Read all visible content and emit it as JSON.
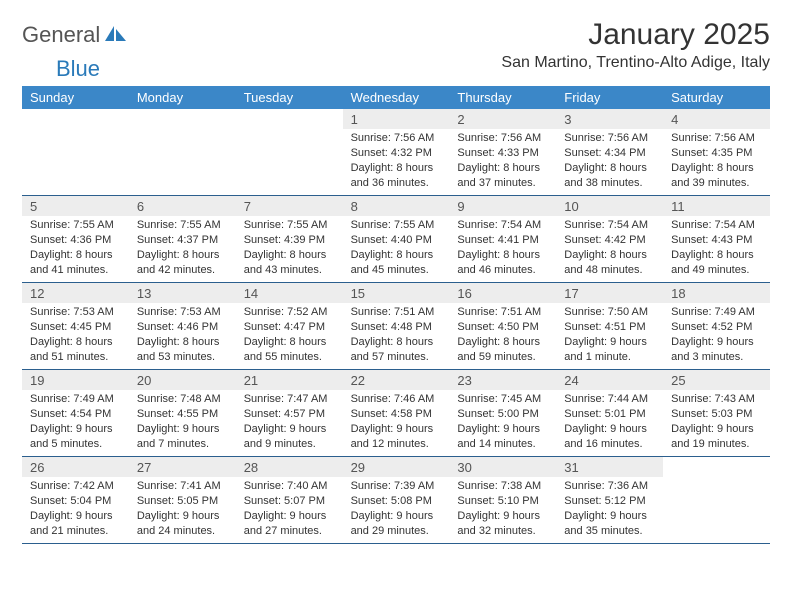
{
  "brand": {
    "part1": "General",
    "part2": "Blue"
  },
  "title": "January 2025",
  "location": "San Martino, Trentino-Alto Adige, Italy",
  "colors": {
    "header_bg": "#3b87c8",
    "header_text": "#ffffff",
    "daynum_bg": "#ededed",
    "rule": "#2b5f8e",
    "brand_blue": "#2a7ab9",
    "text": "#333333"
  },
  "day_names": [
    "Sunday",
    "Monday",
    "Tuesday",
    "Wednesday",
    "Thursday",
    "Friday",
    "Saturday"
  ],
  "weeks": [
    [
      {
        "n": "",
        "lines": []
      },
      {
        "n": "",
        "lines": []
      },
      {
        "n": "",
        "lines": []
      },
      {
        "n": "1",
        "lines": [
          "Sunrise: 7:56 AM",
          "Sunset: 4:32 PM",
          "Daylight: 8 hours",
          "and 36 minutes."
        ]
      },
      {
        "n": "2",
        "lines": [
          "Sunrise: 7:56 AM",
          "Sunset: 4:33 PM",
          "Daylight: 8 hours",
          "and 37 minutes."
        ]
      },
      {
        "n": "3",
        "lines": [
          "Sunrise: 7:56 AM",
          "Sunset: 4:34 PM",
          "Daylight: 8 hours",
          "and 38 minutes."
        ]
      },
      {
        "n": "4",
        "lines": [
          "Sunrise: 7:56 AM",
          "Sunset: 4:35 PM",
          "Daylight: 8 hours",
          "and 39 minutes."
        ]
      }
    ],
    [
      {
        "n": "5",
        "lines": [
          "Sunrise: 7:55 AM",
          "Sunset: 4:36 PM",
          "Daylight: 8 hours",
          "and 41 minutes."
        ]
      },
      {
        "n": "6",
        "lines": [
          "Sunrise: 7:55 AM",
          "Sunset: 4:37 PM",
          "Daylight: 8 hours",
          "and 42 minutes."
        ]
      },
      {
        "n": "7",
        "lines": [
          "Sunrise: 7:55 AM",
          "Sunset: 4:39 PM",
          "Daylight: 8 hours",
          "and 43 minutes."
        ]
      },
      {
        "n": "8",
        "lines": [
          "Sunrise: 7:55 AM",
          "Sunset: 4:40 PM",
          "Daylight: 8 hours",
          "and 45 minutes."
        ]
      },
      {
        "n": "9",
        "lines": [
          "Sunrise: 7:54 AM",
          "Sunset: 4:41 PM",
          "Daylight: 8 hours",
          "and 46 minutes."
        ]
      },
      {
        "n": "10",
        "lines": [
          "Sunrise: 7:54 AM",
          "Sunset: 4:42 PM",
          "Daylight: 8 hours",
          "and 48 minutes."
        ]
      },
      {
        "n": "11",
        "lines": [
          "Sunrise: 7:54 AM",
          "Sunset: 4:43 PM",
          "Daylight: 8 hours",
          "and 49 minutes."
        ]
      }
    ],
    [
      {
        "n": "12",
        "lines": [
          "Sunrise: 7:53 AM",
          "Sunset: 4:45 PM",
          "Daylight: 8 hours",
          "and 51 minutes."
        ]
      },
      {
        "n": "13",
        "lines": [
          "Sunrise: 7:53 AM",
          "Sunset: 4:46 PM",
          "Daylight: 8 hours",
          "and 53 minutes."
        ]
      },
      {
        "n": "14",
        "lines": [
          "Sunrise: 7:52 AM",
          "Sunset: 4:47 PM",
          "Daylight: 8 hours",
          "and 55 minutes."
        ]
      },
      {
        "n": "15",
        "lines": [
          "Sunrise: 7:51 AM",
          "Sunset: 4:48 PM",
          "Daylight: 8 hours",
          "and 57 minutes."
        ]
      },
      {
        "n": "16",
        "lines": [
          "Sunrise: 7:51 AM",
          "Sunset: 4:50 PM",
          "Daylight: 8 hours",
          "and 59 minutes."
        ]
      },
      {
        "n": "17",
        "lines": [
          "Sunrise: 7:50 AM",
          "Sunset: 4:51 PM",
          "Daylight: 9 hours",
          "and 1 minute."
        ]
      },
      {
        "n": "18",
        "lines": [
          "Sunrise: 7:49 AM",
          "Sunset: 4:52 PM",
          "Daylight: 9 hours",
          "and 3 minutes."
        ]
      }
    ],
    [
      {
        "n": "19",
        "lines": [
          "Sunrise: 7:49 AM",
          "Sunset: 4:54 PM",
          "Daylight: 9 hours",
          "and 5 minutes."
        ]
      },
      {
        "n": "20",
        "lines": [
          "Sunrise: 7:48 AM",
          "Sunset: 4:55 PM",
          "Daylight: 9 hours",
          "and 7 minutes."
        ]
      },
      {
        "n": "21",
        "lines": [
          "Sunrise: 7:47 AM",
          "Sunset: 4:57 PM",
          "Daylight: 9 hours",
          "and 9 minutes."
        ]
      },
      {
        "n": "22",
        "lines": [
          "Sunrise: 7:46 AM",
          "Sunset: 4:58 PM",
          "Daylight: 9 hours",
          "and 12 minutes."
        ]
      },
      {
        "n": "23",
        "lines": [
          "Sunrise: 7:45 AM",
          "Sunset: 5:00 PM",
          "Daylight: 9 hours",
          "and 14 minutes."
        ]
      },
      {
        "n": "24",
        "lines": [
          "Sunrise: 7:44 AM",
          "Sunset: 5:01 PM",
          "Daylight: 9 hours",
          "and 16 minutes."
        ]
      },
      {
        "n": "25",
        "lines": [
          "Sunrise: 7:43 AM",
          "Sunset: 5:03 PM",
          "Daylight: 9 hours",
          "and 19 minutes."
        ]
      }
    ],
    [
      {
        "n": "26",
        "lines": [
          "Sunrise: 7:42 AM",
          "Sunset: 5:04 PM",
          "Daylight: 9 hours",
          "and 21 minutes."
        ]
      },
      {
        "n": "27",
        "lines": [
          "Sunrise: 7:41 AM",
          "Sunset: 5:05 PM",
          "Daylight: 9 hours",
          "and 24 minutes."
        ]
      },
      {
        "n": "28",
        "lines": [
          "Sunrise: 7:40 AM",
          "Sunset: 5:07 PM",
          "Daylight: 9 hours",
          "and 27 minutes."
        ]
      },
      {
        "n": "29",
        "lines": [
          "Sunrise: 7:39 AM",
          "Sunset: 5:08 PM",
          "Daylight: 9 hours",
          "and 29 minutes."
        ]
      },
      {
        "n": "30",
        "lines": [
          "Sunrise: 7:38 AM",
          "Sunset: 5:10 PM",
          "Daylight: 9 hours",
          "and 32 minutes."
        ]
      },
      {
        "n": "31",
        "lines": [
          "Sunrise: 7:36 AM",
          "Sunset: 5:12 PM",
          "Daylight: 9 hours",
          "and 35 minutes."
        ]
      },
      {
        "n": "",
        "lines": []
      }
    ]
  ]
}
